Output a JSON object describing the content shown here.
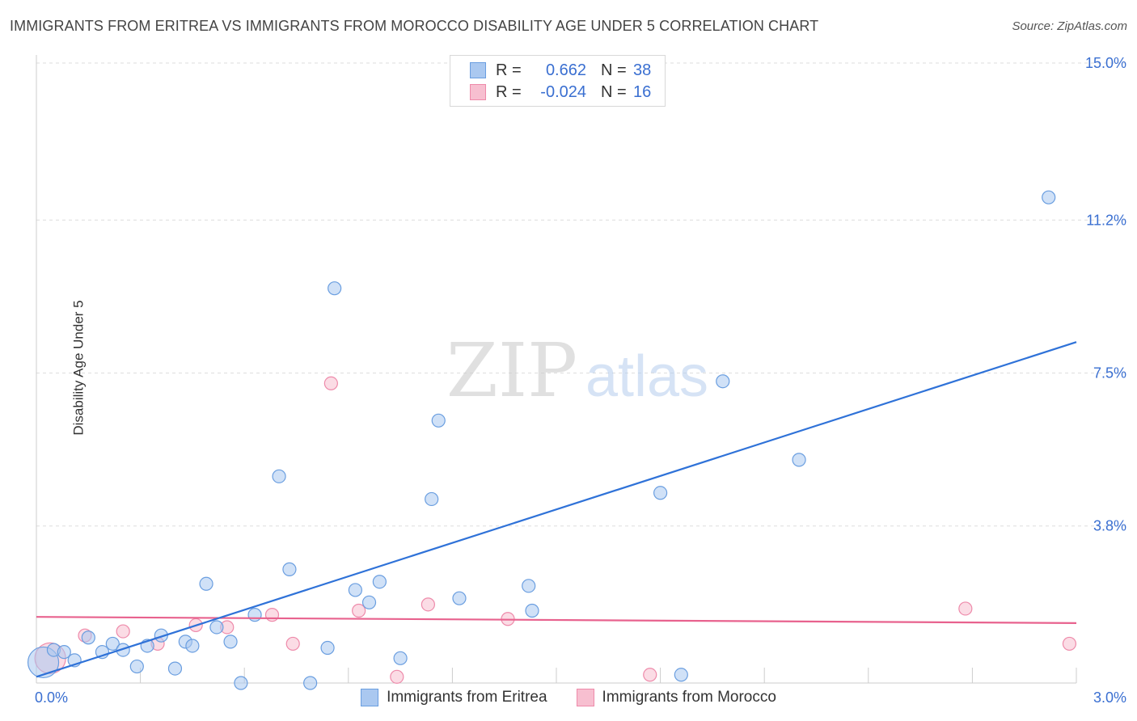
{
  "title": "IMMIGRANTS FROM ERITREA VS IMMIGRANTS FROM MOROCCO DISABILITY AGE UNDER 5 CORRELATION CHART",
  "source": "Source: ZipAtlas.com",
  "watermark": {
    "zip": "ZIP",
    "atlas": "atlas"
  },
  "legend": {
    "rows": [
      {
        "r_label": "R =",
        "r_value": "0.662",
        "n_label": "N =",
        "n_value": "38"
      },
      {
        "r_label": "R =",
        "r_value": "-0.024",
        "n_label": "N =",
        "n_value": "16"
      }
    ]
  },
  "bottom_legend": {
    "eritrea": "Immigrants from Eritrea",
    "morocco": "Immigrants from Morocco"
  },
  "colors": {
    "eritrea_fill": "#aac8f0",
    "eritrea_stroke": "#6a9ee0",
    "eritrea_line": "#2f72d8",
    "morocco_fill": "#f7bfd0",
    "morocco_stroke": "#ee8aaa",
    "morocco_line": "#e8628e",
    "axis_label": "#3a6fd1",
    "grid": "#dddddd"
  },
  "chart_data": {
    "type": "scatter",
    "title": "IMMIGRANTS FROM ERITREA VS IMMIGRANTS FROM MOROCCO DISABILITY AGE UNDER 5 CORRELATION CHART",
    "xlabel": "",
    "ylabel": "Disability Age Under 5",
    "xlim": [
      0.0,
      3.0
    ],
    "ylim": [
      0.0,
      15.0
    ],
    "x_tick_labels": [
      "0.0%",
      "3.0%"
    ],
    "y_ticks": [
      3.8,
      7.5,
      11.2,
      15.0
    ],
    "y_tick_labels": [
      "3.8%",
      "7.5%",
      "11.2%",
      "15.0%"
    ],
    "series": [
      {
        "name": "Immigrants from Eritrea",
        "r": 0.662,
        "n": 38,
        "trend": {
          "x": [
            0.0,
            3.0
          ],
          "y": [
            0.15,
            8.25
          ]
        },
        "points": [
          {
            "x": 0.02,
            "y": 0.5,
            "size": "large"
          },
          {
            "x": 0.05,
            "y": 0.8
          },
          {
            "x": 0.08,
            "y": 0.75
          },
          {
            "x": 0.11,
            "y": 0.55
          },
          {
            "x": 0.15,
            "y": 1.1
          },
          {
            "x": 0.19,
            "y": 0.75
          },
          {
            "x": 0.22,
            "y": 0.95
          },
          {
            "x": 0.25,
            "y": 0.8
          },
          {
            "x": 0.29,
            "y": 0.4
          },
          {
            "x": 0.32,
            "y": 0.9
          },
          {
            "x": 0.36,
            "y": 1.15
          },
          {
            "x": 0.4,
            "y": 0.35
          },
          {
            "x": 0.43,
            "y": 1.0
          },
          {
            "x": 0.45,
            "y": 0.9
          },
          {
            "x": 0.49,
            "y": 2.4
          },
          {
            "x": 0.52,
            "y": 1.35
          },
          {
            "x": 0.56,
            "y": 1.0
          },
          {
            "x": 0.59,
            "y": 0.0
          },
          {
            "x": 0.63,
            "y": 1.65
          },
          {
            "x": 0.7,
            "y": 5.0
          },
          {
            "x": 0.73,
            "y": 2.75
          },
          {
            "x": 0.79,
            "y": 0.0
          },
          {
            "x": 0.84,
            "y": 0.85
          },
          {
            "x": 0.86,
            "y": 9.55
          },
          {
            "x": 0.92,
            "y": 2.25
          },
          {
            "x": 0.96,
            "y": 1.95
          },
          {
            "x": 0.99,
            "y": 2.45
          },
          {
            "x": 1.05,
            "y": 0.6
          },
          {
            "x": 1.14,
            "y": 4.45
          },
          {
            "x": 1.16,
            "y": 6.35
          },
          {
            "x": 1.22,
            "y": 2.05
          },
          {
            "x": 1.42,
            "y": 2.35
          },
          {
            "x": 1.43,
            "y": 1.75
          },
          {
            "x": 1.8,
            "y": 4.6
          },
          {
            "x": 1.86,
            "y": 0.2
          },
          {
            "x": 1.98,
            "y": 7.3
          },
          {
            "x": 2.2,
            "y": 5.4
          },
          {
            "x": 2.92,
            "y": 11.75
          }
        ]
      },
      {
        "name": "Immigrants from Morocco",
        "r": -0.024,
        "n": 16,
        "trend": {
          "x": [
            0.0,
            3.0
          ],
          "y": [
            1.6,
            1.45
          ]
        },
        "points": [
          {
            "x": 0.04,
            "y": 0.6,
            "size": "large"
          },
          {
            "x": 0.14,
            "y": 1.15
          },
          {
            "x": 0.25,
            "y": 1.25
          },
          {
            "x": 0.35,
            "y": 0.95
          },
          {
            "x": 0.46,
            "y": 1.4
          },
          {
            "x": 0.55,
            "y": 1.35
          },
          {
            "x": 0.68,
            "y": 1.65
          },
          {
            "x": 0.74,
            "y": 0.95
          },
          {
            "x": 0.85,
            "y": 7.25
          },
          {
            "x": 0.93,
            "y": 1.75
          },
          {
            "x": 1.04,
            "y": 0.15
          },
          {
            "x": 1.13,
            "y": 1.9
          },
          {
            "x": 1.36,
            "y": 1.55
          },
          {
            "x": 1.77,
            "y": 0.2
          },
          {
            "x": 2.68,
            "y": 1.8
          },
          {
            "x": 2.98,
            "y": 0.95
          }
        ]
      }
    ]
  }
}
